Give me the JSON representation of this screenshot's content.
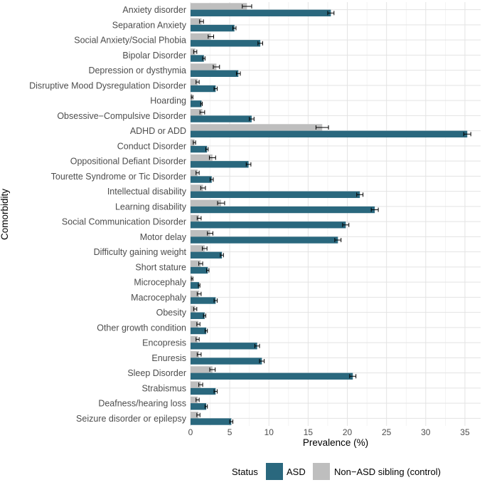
{
  "chart_data": {
    "type": "bar",
    "orientation": "horizontal",
    "xlabel": "Prevalence (%)",
    "ylabel": "Comorbidity",
    "xlim": [
      0,
      37
    ],
    "xticks": [
      "0",
      "5",
      "10",
      "15",
      "20",
      "25",
      "30",
      "35"
    ],
    "grid": true,
    "legend_position": "bottom",
    "legend_title": "Status",
    "categories": [
      "Anxiety disorder",
      "Separation Anxiety",
      "Social Anxiety/Social Phobia",
      "Bipolar Disorder",
      "Depression or dysthymia",
      "Disruptive Mood Dysregulation Disorder",
      "Hoarding",
      "Obsessive−Compulsive Disorder",
      "ADHD or ADD",
      "Conduct Disorder",
      "Oppositional Defiant Disorder",
      "Tourette Syndrome or Tic Disorder",
      "Intellectual disability",
      "Learning disability",
      "Social Communication Disorder",
      "Motor delay",
      "Difficulty gaining weight",
      "Short stature",
      "Microcephaly",
      "Macrocephaly",
      "Obesity",
      "Other growth condition",
      "Encopresis",
      "Enuresis",
      "Sleep Disorder",
      "Strabismus",
      "Deafness/hearing loss",
      "Seizure disorder or epilepsy"
    ],
    "series": [
      {
        "name": "Non−ASD sibling (control)",
        "color": "#bebebe",
        "values": [
          7.2,
          1.4,
          2.6,
          0.6,
          3.3,
          0.9,
          0.2,
          1.5,
          16.8,
          0.5,
          2.8,
          0.9,
          1.6,
          3.9,
          1.1,
          2.5,
          1.8,
          1.3,
          0.2,
          1.1,
          0.6,
          1.0,
          0.9,
          1.1,
          2.8,
          1.3,
          0.9,
          1.0
        ],
        "errors": [
          0.6,
          0.25,
          0.35,
          0.2,
          0.4,
          0.2,
          0.1,
          0.3,
          0.8,
          0.15,
          0.4,
          0.2,
          0.3,
          0.45,
          0.25,
          0.35,
          0.3,
          0.25,
          0.1,
          0.25,
          0.2,
          0.2,
          0.2,
          0.25,
          0.35,
          0.25,
          0.2,
          0.2
        ]
      },
      {
        "name": "ASD",
        "color": "#2a687e",
        "values": [
          17.9,
          5.6,
          8.9,
          1.7,
          6.1,
          3.2,
          1.4,
          7.8,
          35.3,
          2.1,
          7.4,
          2.7,
          21.6,
          23.5,
          19.8,
          18.8,
          4.0,
          2.2,
          1.1,
          3.2,
          1.8,
          2.0,
          8.5,
          9.1,
          20.7,
          3.2,
          2.0,
          5.2
        ],
        "errors": [
          0.4,
          0.2,
          0.3,
          0.15,
          0.25,
          0.2,
          0.1,
          0.3,
          0.45,
          0.15,
          0.3,
          0.2,
          0.4,
          0.45,
          0.4,
          0.4,
          0.2,
          0.15,
          0.1,
          0.2,
          0.15,
          0.15,
          0.3,
          0.3,
          0.4,
          0.2,
          0.15,
          0.2
        ]
      }
    ],
    "legend": [
      {
        "label": "ASD",
        "color": "#2a687e"
      },
      {
        "label": "Non−ASD sibling (control)",
        "color": "#bebebe"
      }
    ]
  }
}
